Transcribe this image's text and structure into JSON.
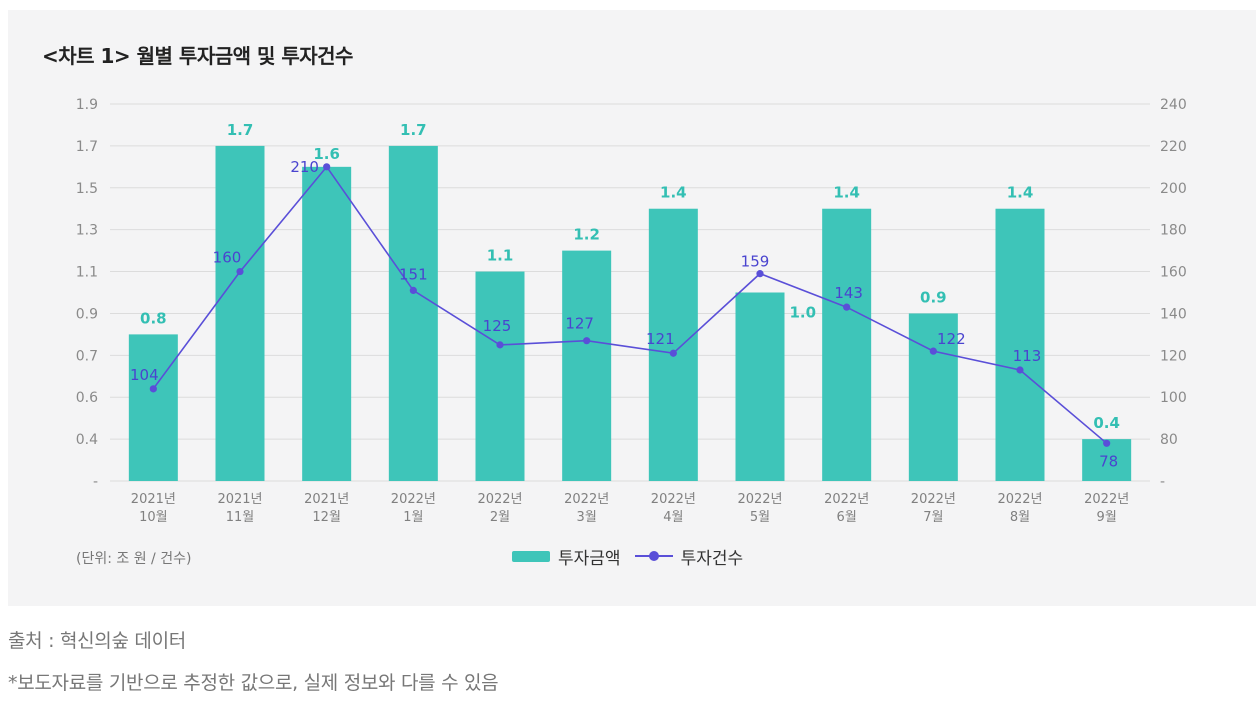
{
  "colors": {
    "bar": "#3ec5b9",
    "bar_label": "#33bfb3",
    "line": "#5a4fd8",
    "line_label": "#4a44cf",
    "grid": "#dcdcdc",
    "axis_text": "#8a8a8a"
  },
  "chart_data": {
    "type": "bar",
    "title": "<차트 1> 월별 투자금액 및 투자건수",
    "categories": [
      [
        "2021년",
        "10월"
      ],
      [
        "2021년",
        "11월"
      ],
      [
        "2021년",
        "12월"
      ],
      [
        "2022년",
        "1월"
      ],
      [
        "2022년",
        "2월"
      ],
      [
        "2022년",
        "3월"
      ],
      [
        "2022년",
        "4월"
      ],
      [
        "2022년",
        "5월"
      ],
      [
        "2022년",
        "6월"
      ],
      [
        "2022년",
        "7월"
      ],
      [
        "2022년",
        "8월"
      ],
      [
        "2022년",
        "9월"
      ]
    ],
    "series": [
      {
        "name": "투자금액",
        "type": "bar",
        "axis": "left",
        "values": [
          0.8,
          1.7,
          1.6,
          1.7,
          1.1,
          1.2,
          1.4,
          1.0,
          1.4,
          0.9,
          1.4,
          0.4
        ],
        "labels": [
          "0.8",
          "1.7",
          "1.6",
          "1.7",
          "1.1",
          "1.2",
          "1.4",
          "1.0",
          "1.4",
          "0.9",
          "1.4",
          "0.4"
        ]
      },
      {
        "name": "투자건수",
        "type": "line",
        "axis": "right",
        "values": [
          104,
          160,
          210,
          151,
          125,
          127,
          121,
          159,
          143,
          122,
          113,
          78
        ],
        "labels": [
          "104",
          "160",
          "210",
          "151",
          "125",
          "127",
          "121",
          "159",
          "143",
          "122",
          "113",
          "78"
        ]
      }
    ],
    "left_axis": {
      "ticks": [
        0.4,
        0.6,
        0.7,
        0.9,
        1.1,
        1.3,
        1.5,
        1.7,
        1.9
      ],
      "tick_labels": [
        "-",
        "0.4",
        "0.6",
        "0.7",
        "0.9",
        "1.1",
        "1.3",
        "1.5",
        "1.7",
        "1.9"
      ],
      "range": [
        0,
        1.9
      ]
    },
    "right_axis": {
      "tick_labels": [
        "-",
        "80",
        "100",
        "120",
        "140",
        "160",
        "180",
        "200",
        "220",
        "240"
      ],
      "range": [
        60,
        240
      ]
    },
    "unit_note": "(단위: 조 원 / 건수)",
    "legend": {
      "bar_label": "투자금액",
      "line_label": "투자건수",
      "position": "bottom-center"
    }
  },
  "footnotes": {
    "source": "출처 : 혁신의숲 데이터",
    "note": "*보도자료를 기반으로 추정한 값으로, 실제 정보와 다를 수 있음"
  }
}
